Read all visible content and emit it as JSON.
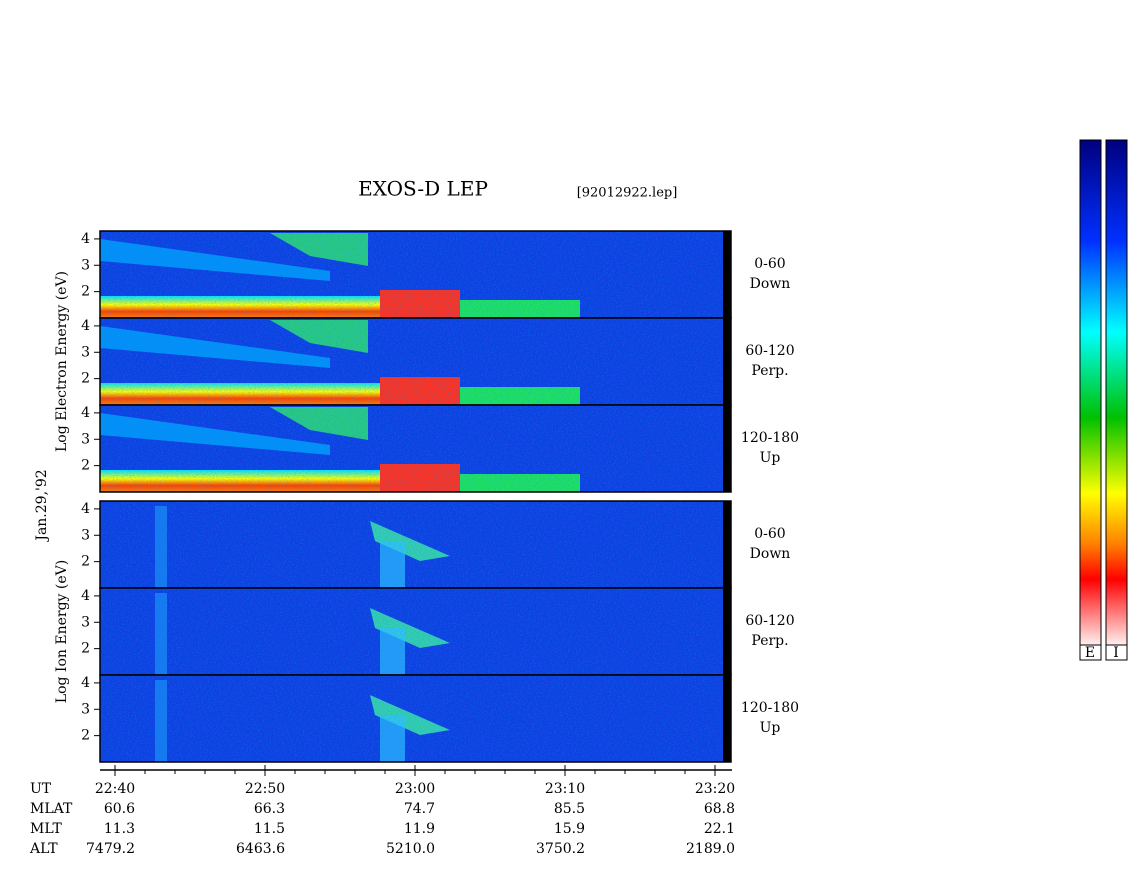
{
  "chart_data": {
    "type": "spectrogram",
    "title": "EXOS-D LEP",
    "subtitle": "[92012922.lep]",
    "date_label": "Jan.29,'92",
    "groups": [
      {
        "ylabel": "Log  Electron  Energy (eV)",
        "species": "electron",
        "panels": [
          {
            "name": "0-60",
            "sub": "Down"
          },
          {
            "name": "60-120",
            "sub": "Perp."
          },
          {
            "name": "120-180",
            "sub": "Up"
          }
        ]
      },
      {
        "ylabel": "Log  Ion  Energy (eV)",
        "species": "ion",
        "panels": [
          {
            "name": "0-60",
            "sub": "Down"
          },
          {
            "name": "60-120",
            "sub": "Perp."
          },
          {
            "name": "120-180",
            "sub": "Up"
          }
        ]
      }
    ],
    "ylim": [
      1,
      4.3
    ],
    "yticks": [
      2,
      3,
      4
    ],
    "xlabel": "UT",
    "xticks": [
      "22:40",
      "22:50",
      "23:00",
      "23:10",
      "23:20"
    ],
    "orbit_rows": [
      {
        "label": "MLAT",
        "values": [
          "60.6",
          "66.3",
          "74.7",
          "85.5",
          "68.8"
        ]
      },
      {
        "label": "MLT",
        "values": [
          "11.3",
          "11.5",
          "11.9",
          "15.9",
          "22.1"
        ]
      },
      {
        "label": "ALT",
        "values": [
          "7479.2",
          "6463.6",
          "5210.0",
          "3750.2",
          "2189.0"
        ]
      }
    ],
    "colorbar_labels": [
      "E",
      "I"
    ]
  }
}
